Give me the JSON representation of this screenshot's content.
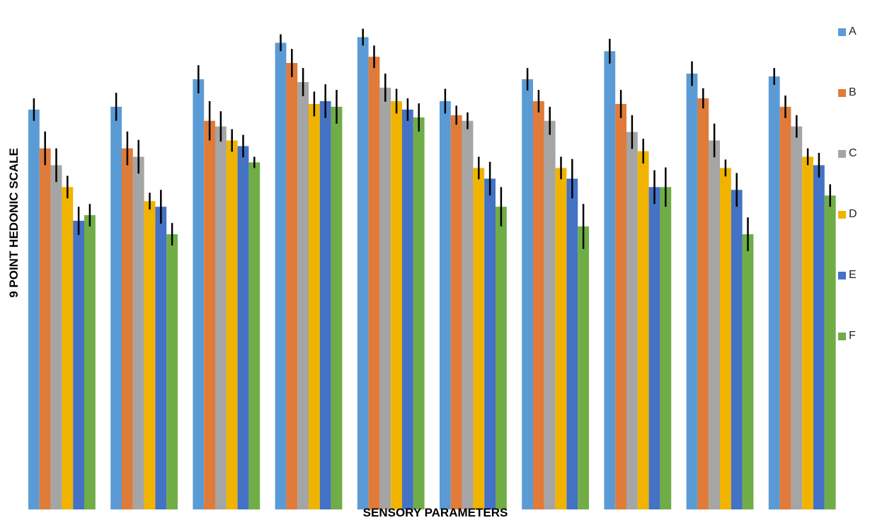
{
  "chart_data": {
    "type": "bar",
    "title": "",
    "xlabel": "SENSORY PARAMETERS",
    "ylabel": "9 POINT HEDONIC SCALE",
    "categories": [
      "",
      "",
      "",
      "",
      "",
      "",
      "",
      "",
      "",
      ""
    ],
    "ylim": [
      0,
      8.92
    ],
    "grid": false,
    "legend_position": "right",
    "series": [
      {
        "name": "A",
        "color": "#5B9BD5",
        "values": [
          7.12,
          7.17,
          7.66,
          8.31,
          8.41,
          7.27,
          7.66,
          8.16,
          7.76,
          7.71
        ],
        "errors": [
          0.2,
          0.25,
          0.25,
          0.15,
          0.15,
          0.22,
          0.2,
          0.22,
          0.22,
          0.15
        ]
      },
      {
        "name": "B",
        "color": "#E07B39",
        "values": [
          6.43,
          6.43,
          6.92,
          7.95,
          8.06,
          7.02,
          7.27,
          7.22,
          7.32,
          7.17
        ],
        "errors": [
          0.3,
          0.3,
          0.35,
          0.25,
          0.2,
          0.17,
          0.2,
          0.25,
          0.18,
          0.2
        ]
      },
      {
        "name": "C",
        "color": "#A5A5A5",
        "values": [
          6.13,
          6.28,
          6.82,
          7.61,
          7.51,
          6.92,
          6.92,
          6.72,
          6.57,
          6.82
        ],
        "errors": [
          0.3,
          0.3,
          0.27,
          0.25,
          0.25,
          0.15,
          0.25,
          0.3,
          0.3,
          0.2
        ]
      },
      {
        "name": "D",
        "color": "#F0B400",
        "values": [
          5.74,
          5.49,
          6.57,
          7.22,
          7.27,
          6.08,
          6.08,
          6.38,
          6.08,
          6.28
        ],
        "errors": [
          0.2,
          0.15,
          0.2,
          0.22,
          0.22,
          0.2,
          0.2,
          0.22,
          0.15,
          0.15
        ]
      },
      {
        "name": "E",
        "color": "#4472C4",
        "values": [
          5.14,
          5.39,
          6.47,
          7.27,
          7.12,
          5.89,
          5.89,
          5.74,
          5.69,
          6.13
        ],
        "errors": [
          0.25,
          0.3,
          0.2,
          0.3,
          0.2,
          0.3,
          0.35,
          0.3,
          0.3,
          0.22
        ]
      },
      {
        "name": "F",
        "color": "#70AD47",
        "values": [
          5.24,
          4.9,
          6.18,
          7.17,
          6.98,
          5.39,
          5.04,
          5.74,
          4.9,
          5.59
        ],
        "errors": [
          0.2,
          0.2,
          0.1,
          0.3,
          0.25,
          0.35,
          0.4,
          0.35,
          0.3,
          0.2
        ]
      }
    ]
  }
}
